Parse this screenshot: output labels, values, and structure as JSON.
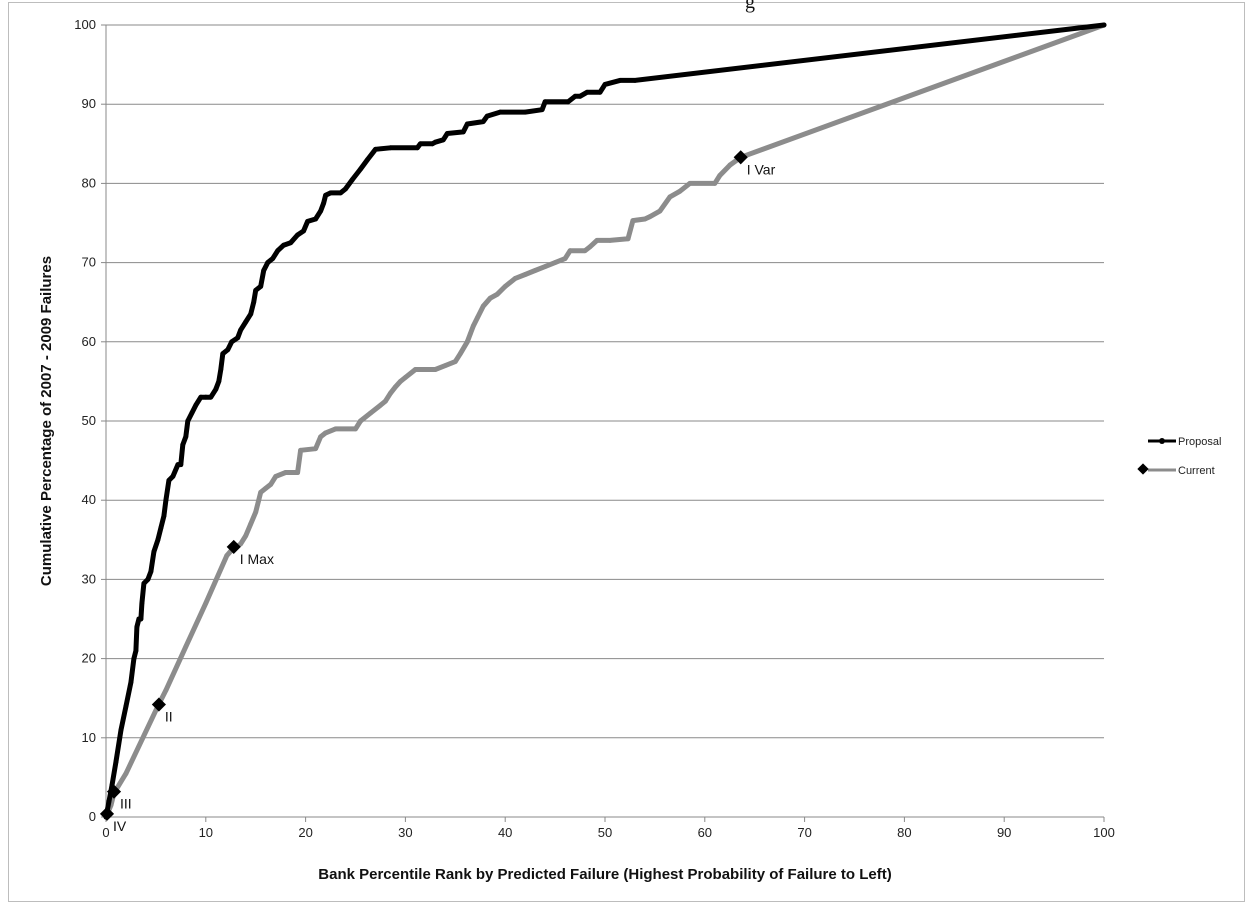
{
  "page": {
    "title_fragment": "g"
  },
  "chart_data": {
    "type": "line",
    "title": "",
    "xlabel": "Bank Percentile Rank by Predicted Failure (Highest Probability of Failure to Left)",
    "ylabel": "Cumulative Percentage of 2007 - 2009 Failures",
    "xlim": [
      0,
      100
    ],
    "ylim": [
      0,
      100
    ],
    "xticks": [
      0,
      10,
      20,
      30,
      40,
      50,
      60,
      70,
      80,
      90,
      100
    ],
    "yticks": [
      0,
      10,
      20,
      30,
      40,
      50,
      60,
      70,
      80,
      90,
      100
    ],
    "grid": "horizontal",
    "legend_position": "right",
    "series": [
      {
        "name": "Proposal",
        "color": "#000000",
        "marker": "circle",
        "points": [
          [
            0,
            0
          ],
          [
            0.3,
            2
          ],
          [
            0.6,
            4
          ],
          [
            1,
            7
          ],
          [
            1.5,
            11
          ],
          [
            2,
            14
          ],
          [
            2.5,
            17
          ],
          [
            2.8,
            20
          ],
          [
            3,
            21
          ],
          [
            3.1,
            24
          ],
          [
            3.3,
            25
          ],
          [
            3.5,
            25
          ],
          [
            3.6,
            27
          ],
          [
            3.8,
            29.5
          ],
          [
            4.2,
            30
          ],
          [
            4.5,
            31
          ],
          [
            4.8,
            33.5
          ],
          [
            5.2,
            35
          ],
          [
            5.5,
            36.5
          ],
          [
            5.8,
            38
          ],
          [
            6,
            40
          ],
          [
            6.3,
            42.5
          ],
          [
            6.7,
            43
          ],
          [
            7.2,
            44.5
          ],
          [
            7.5,
            44.5
          ],
          [
            7.7,
            47
          ],
          [
            8,
            48
          ],
          [
            8.2,
            50
          ],
          [
            8.6,
            51
          ],
          [
            9,
            52
          ],
          [
            9.5,
            53
          ],
          [
            10,
            53
          ],
          [
            10.5,
            53
          ],
          [
            11,
            54
          ],
          [
            11.3,
            55
          ],
          [
            11.5,
            56.5
          ],
          [
            11.7,
            58.5
          ],
          [
            12.2,
            59
          ],
          [
            12.6,
            60
          ],
          [
            13.2,
            60.5
          ],
          [
            13.5,
            61.5
          ],
          [
            14,
            62.5
          ],
          [
            14.5,
            63.5
          ],
          [
            14.8,
            65
          ],
          [
            15,
            66.5
          ],
          [
            15.5,
            67
          ],
          [
            15.8,
            69
          ],
          [
            16.2,
            70
          ],
          [
            16.7,
            70.5
          ],
          [
            17.2,
            71.5
          ],
          [
            17.8,
            72.2
          ],
          [
            18.5,
            72.5
          ],
          [
            19.2,
            73.5
          ],
          [
            19.8,
            74
          ],
          [
            20.2,
            75.2
          ],
          [
            21,
            75.5
          ],
          [
            21.5,
            76.5
          ],
          [
            21.8,
            77.5
          ],
          [
            22,
            78.5
          ],
          [
            22.5,
            78.8
          ],
          [
            23.5,
            78.8
          ],
          [
            24,
            79.3
          ],
          [
            24.7,
            80.5
          ],
          [
            25.5,
            81.8
          ],
          [
            26.2,
            83
          ],
          [
            27,
            84.3
          ],
          [
            28.5,
            84.5
          ],
          [
            31.2,
            84.5
          ],
          [
            31.5,
            85
          ],
          [
            32.7,
            85
          ],
          [
            33,
            85.2
          ],
          [
            33.8,
            85.5
          ],
          [
            34.2,
            86.3
          ],
          [
            35.8,
            86.5
          ],
          [
            36.2,
            87.5
          ],
          [
            37.8,
            87.8
          ],
          [
            38.2,
            88.5
          ],
          [
            39.5,
            89
          ],
          [
            42,
            89
          ],
          [
            43.7,
            89.3
          ],
          [
            44,
            90.3
          ],
          [
            46.3,
            90.3
          ],
          [
            47,
            91
          ],
          [
            47.5,
            91
          ],
          [
            48.2,
            91.5
          ],
          [
            49.5,
            91.5
          ],
          [
            50,
            92.5
          ],
          [
            51.5,
            93
          ],
          [
            53,
            93
          ],
          [
            100,
            100
          ]
        ]
      },
      {
        "name": "Current",
        "color": "#8c8c8c",
        "marker": "diamond",
        "points": [
          [
            0,
            0
          ],
          [
            0.5,
            1.5
          ],
          [
            0.8,
            3
          ],
          [
            2,
            5.5
          ],
          [
            5.2,
            14
          ],
          [
            6,
            16
          ],
          [
            8,
            21.5
          ],
          [
            10,
            27
          ],
          [
            12.1,
            33
          ],
          [
            12.8,
            34
          ],
          [
            13,
            34
          ],
          [
            13.5,
            34.5
          ],
          [
            14,
            35.5
          ],
          [
            14.5,
            37
          ],
          [
            15,
            38.5
          ],
          [
            15.5,
            41
          ],
          [
            16,
            41.5
          ],
          [
            16.5,
            42
          ],
          [
            17,
            43
          ],
          [
            18,
            43.5
          ],
          [
            19.2,
            43.5
          ],
          [
            19.5,
            46.3
          ],
          [
            21,
            46.5
          ],
          [
            21.5,
            48
          ],
          [
            22,
            48.5
          ],
          [
            23,
            49
          ],
          [
            25,
            49
          ],
          [
            25.5,
            50
          ],
          [
            26.5,
            51
          ],
          [
            27.5,
            52
          ],
          [
            28,
            52.5
          ],
          [
            28.5,
            53.5
          ],
          [
            29,
            54.3
          ],
          [
            29.5,
            55
          ],
          [
            30,
            55.5
          ],
          [
            31,
            56.5
          ],
          [
            33,
            56.5
          ],
          [
            34,
            57
          ],
          [
            35,
            57.5
          ],
          [
            35.5,
            58.5
          ],
          [
            36.2,
            60
          ],
          [
            36.5,
            61
          ],
          [
            36.8,
            62
          ],
          [
            37.2,
            63
          ],
          [
            37.8,
            64.5
          ],
          [
            38.5,
            65.5
          ],
          [
            39.2,
            66
          ],
          [
            40,
            67
          ],
          [
            41,
            68
          ],
          [
            42,
            68.5
          ],
          [
            43,
            69
          ],
          [
            44,
            69.5
          ],
          [
            45,
            70
          ],
          [
            46,
            70.5
          ],
          [
            46.5,
            71.5
          ],
          [
            48,
            71.5
          ],
          [
            48.5,
            72
          ],
          [
            49.2,
            72.8
          ],
          [
            50.5,
            72.8
          ],
          [
            52.3,
            73
          ],
          [
            52.8,
            75.3
          ],
          [
            54,
            75.5
          ],
          [
            54.5,
            75.8
          ],
          [
            55.5,
            76.5
          ],
          [
            56.5,
            78.3
          ],
          [
            57.5,
            79
          ],
          [
            58.5,
            80
          ],
          [
            61,
            80
          ],
          [
            61.5,
            81
          ],
          [
            62.5,
            82.3
          ],
          [
            63.6,
            83.3
          ],
          [
            100,
            100
          ]
        ],
        "annotations": [
          {
            "x": 0.1,
            "y": 0.4,
            "label": "IV"
          },
          {
            "x": 0.8,
            "y": 3.2,
            "label": "III"
          },
          {
            "x": 5.3,
            "y": 14.2,
            "label": "II"
          },
          {
            "x": 12.8,
            "y": 34.1,
            "label": "I Max"
          },
          {
            "x": 63.6,
            "y": 83.3,
            "label": "I Var"
          }
        ]
      }
    ]
  }
}
